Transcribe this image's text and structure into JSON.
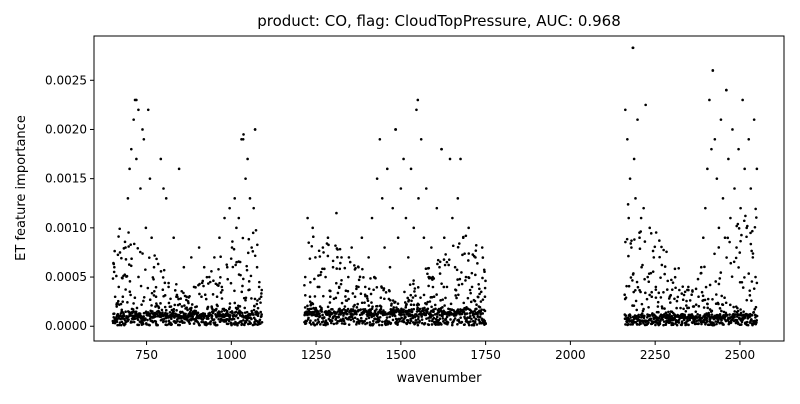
{
  "chart_data": {
    "type": "scatter",
    "title": "product: CO, flag: CloudTopPressure, AUC: 0.968",
    "xlabel": "wavenumber",
    "ylabel": "ET feature importance",
    "xlim": [
      595,
      2630
    ],
    "ylim": [
      -0.00015,
      0.00295
    ],
    "xticks": [
      750,
      1000,
      1250,
      1500,
      1750,
      2000,
      2250,
      2500
    ],
    "yticks": [
      0.0,
      0.0005,
      0.001,
      0.0015,
      0.002,
      0.0025
    ],
    "ytick_labels": [
      "0.0000",
      "0.0005",
      "0.0010",
      "0.0015",
      "0.0020",
      "0.0025"
    ],
    "grid": false,
    "marker_color": "#000000",
    "bands": [
      {
        "x_range": [
          650,
          1090
        ],
        "baseline": 0.0001,
        "spread": 0.0009,
        "peaks": [
          [
            720,
            0.0023
          ],
          [
            1035,
            0.0019
          ],
          [
            1070,
            0.002
          ]
        ]
      },
      {
        "x_range": [
          1215,
          1750
        ],
        "baseline": 0.00012,
        "spread": 0.0008,
        "peaks": [
          [
            1550,
            0.0023
          ],
          [
            1485,
            0.002
          ],
          [
            1620,
            0.0018
          ]
        ]
      },
      {
        "x_range": [
          2160,
          2550
        ],
        "baseline": 8e-05,
        "spread": 0.0012,
        "peaks": [
          [
            2185,
            0.00283
          ],
          [
            2420,
            0.0026
          ],
          [
            2460,
            0.0024
          ]
        ]
      }
    ],
    "points": [
      [
        655,
        0.0006
      ],
      [
        662,
        0.0002
      ],
      [
        668,
        0.0004
      ],
      [
        675,
        0.0001
      ],
      [
        680,
        0.0003
      ],
      [
        688,
        0.0008
      ],
      [
        695,
        0.0013
      ],
      [
        700,
        0.0016
      ],
      [
        705,
        0.0018
      ],
      [
        712,
        0.0021
      ],
      [
        716,
        0.0023
      ],
      [
        720,
        0.0017
      ],
      [
        726,
        0.0022
      ],
      [
        732,
        0.0014
      ],
      [
        738,
        0.002
      ],
      [
        742,
        0.0019
      ],
      [
        748,
        0.001
      ],
      [
        755,
        0.0022
      ],
      [
        760,
        0.0015
      ],
      [
        765,
        0.0009
      ],
      [
        772,
        0.0006
      ],
      [
        778,
        0.0003
      ],
      [
        785,
        0.0002
      ],
      [
        792,
        0.0017
      ],
      [
        800,
        0.0014
      ],
      [
        808,
        0.0013
      ],
      [
        815,
        0.0004
      ],
      [
        822,
        0.0002
      ],
      [
        830,
        0.0009
      ],
      [
        838,
        0.0003
      ],
      [
        846,
        0.0016
      ],
      [
        852,
        0.0001
      ],
      [
        860,
        0.0006
      ],
      [
        868,
        0.0003
      ],
      [
        875,
        0.0001
      ],
      [
        882,
        0.0007
      ],
      [
        890,
        0.0004
      ],
      [
        898,
        0.0002
      ],
      [
        905,
        0.0008
      ],
      [
        912,
        0.0003
      ],
      [
        920,
        0.0006
      ],
      [
        928,
        0.0001
      ],
      [
        935,
        0.0005
      ],
      [
        942,
        0.0002
      ],
      [
        950,
        0.0007
      ],
      [
        958,
        0.0003
      ],
      [
        965,
        0.0009
      ],
      [
        972,
        0.0004
      ],
      [
        980,
        0.0011
      ],
      [
        988,
        0.0006
      ],
      [
        995,
        0.0012
      ],
      [
        1002,
        0.0008
      ],
      [
        1010,
        0.0013
      ],
      [
        1015,
        0.001
      ],
      [
        1022,
        0.0011
      ],
      [
        1030,
        0.0019
      ],
      [
        1036,
        0.00195
      ],
      [
        1042,
        0.0015
      ],
      [
        1048,
        0.0017
      ],
      [
        1055,
        0.0013
      ],
      [
        1060,
        0.0008
      ],
      [
        1066,
        0.0012
      ],
      [
        1070,
        0.002
      ],
      [
        1076,
        0.0006
      ],
      [
        1082,
        0.0004
      ],
      [
        1088,
        0.0003
      ],
      [
        1218,
        0.0005
      ],
      [
        1225,
        0.0011
      ],
      [
        1232,
        0.0003
      ],
      [
        1240,
        0.001
      ],
      [
        1248,
        0.0007
      ],
      [
        1255,
        0.0004
      ],
      [
        1262,
        0.0002
      ],
      [
        1270,
        0.0008
      ],
      [
        1278,
        0.0005
      ],
      [
        1285,
        0.0009
      ],
      [
        1292,
        0.0003
      ],
      [
        1300,
        0.0006
      ],
      [
        1310,
        0.00115
      ],
      [
        1318,
        0.0004
      ],
      [
        1325,
        0.0007
      ],
      [
        1335,
        0.0002
      ],
      [
        1345,
        0.0005
      ],
      [
        1355,
        0.0008
      ],
      [
        1365,
        0.0003
      ],
      [
        1375,
        0.0006
      ],
      [
        1385,
        0.0009
      ],
      [
        1395,
        0.0004
      ],
      [
        1405,
        0.0007
      ],
      [
        1415,
        0.0011
      ],
      [
        1422,
        0.0005
      ],
      [
        1430,
        0.0015
      ],
      [
        1438,
        0.0019
      ],
      [
        1445,
        0.0013
      ],
      [
        1452,
        0.0008
      ],
      [
        1460,
        0.0016
      ],
      [
        1468,
        0.0006
      ],
      [
        1476,
        0.0012
      ],
      [
        1484,
        0.002
      ],
      [
        1492,
        0.0009
      ],
      [
        1500,
        0.0014
      ],
      [
        1508,
        0.0017
      ],
      [
        1515,
        0.0011
      ],
      [
        1522,
        0.0007
      ],
      [
        1530,
        0.0016
      ],
      [
        1538,
        0.001
      ],
      [
        1546,
        0.0022
      ],
      [
        1552,
        0.0013
      ],
      [
        1560,
        0.0019
      ],
      [
        1568,
        0.0009
      ],
      [
        1575,
        0.0014
      ],
      [
        1582,
        0.0005
      ],
      [
        1590,
        0.0008
      ],
      [
        1598,
        0.0003
      ],
      [
        1606,
        0.0012
      ],
      [
        1614,
        0.0006
      ],
      [
        1620,
        0.0018
      ],
      [
        1628,
        0.0009
      ],
      [
        1636,
        0.0004
      ],
      [
        1645,
        0.0017
      ],
      [
        1652,
        0.0011
      ],
      [
        1660,
        0.0006
      ],
      [
        1668,
        0.0013
      ],
      [
        1676,
        0.0017
      ],
      [
        1684,
        0.0009
      ],
      [
        1692,
        0.0005
      ],
      [
        1700,
        0.001
      ],
      [
        1710,
        0.0004
      ],
      [
        1720,
        0.0007
      ],
      [
        1730,
        0.0002
      ],
      [
        1740,
        0.0008
      ],
      [
        1748,
        0.0003
      ],
      [
        2162,
        0.0022
      ],
      [
        2168,
        0.0019
      ],
      [
        2172,
        0.0011
      ],
      [
        2176,
        0.0015
      ],
      [
        2180,
        0.0008
      ],
      [
        2184,
        0.00283
      ],
      [
        2188,
        0.0017
      ],
      [
        2192,
        0.0013
      ],
      [
        2198,
        0.0021
      ],
      [
        2204,
        0.0009
      ],
      [
        2210,
        0.0006
      ],
      [
        2216,
        0.0012
      ],
      [
        2222,
        0.00225
      ],
      [
        2228,
        0.0005
      ],
      [
        2234,
        0.001
      ],
      [
        2240,
        0.0003
      ],
      [
        2246,
        0.0007
      ],
      [
        2252,
        0.0004
      ],
      [
        2258,
        0.0002
      ],
      [
        2264,
        0.0001
      ],
      [
        2270,
        0.0002
      ],
      [
        2278,
        0.0001
      ],
      [
        2285,
        5e-05
      ],
      [
        2292,
        0.0001
      ],
      [
        2300,
        3e-05
      ],
      [
        2308,
        0.0001
      ],
      [
        2315,
        5e-05
      ],
      [
        2322,
        0.0001
      ],
      [
        2330,
        3e-05
      ],
      [
        2338,
        0.0001
      ],
      [
        2346,
        6e-05
      ],
      [
        2354,
        0.0001
      ],
      [
        2362,
        0.0002
      ],
      [
        2370,
        0.0001
      ],
      [
        2378,
        0.0003
      ],
      [
        2386,
        0.0006
      ],
      [
        2392,
        0.0009
      ],
      [
        2398,
        0.0012
      ],
      [
        2404,
        0.0016
      ],
      [
        2410,
        0.0023
      ],
      [
        2416,
        0.0018
      ],
      [
        2420,
        0.0026
      ],
      [
        2426,
        0.0019
      ],
      [
        2432,
        0.0015
      ],
      [
        2438,
        0.001
      ],
      [
        2444,
        0.0021
      ],
      [
        2450,
        0.0013
      ],
      [
        2456,
        0.0009
      ],
      [
        2460,
        0.0024
      ],
      [
        2466,
        0.0017
      ],
      [
        2472,
        0.0011
      ],
      [
        2478,
        0.002
      ],
      [
        2484,
        0.0014
      ],
      [
        2490,
        0.0008
      ],
      [
        2496,
        0.0018
      ],
      [
        2502,
        0.0012
      ],
      [
        2508,
        0.0023
      ],
      [
        2514,
        0.0016
      ],
      [
        2520,
        0.001
      ],
      [
        2526,
        0.0019
      ],
      [
        2532,
        0.0014
      ],
      [
        2538,
        0.0007
      ],
      [
        2542,
        0.0021
      ],
      [
        2546,
        0.0005
      ],
      [
        2550,
        0.0016
      ]
    ]
  }
}
